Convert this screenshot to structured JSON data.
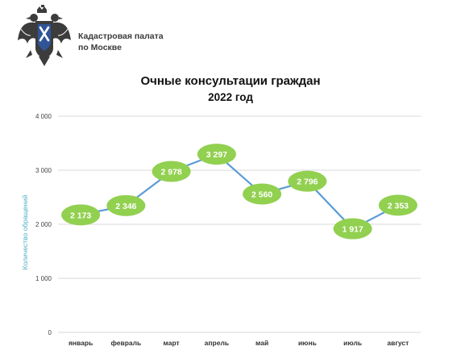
{
  "header": {
    "org_line1": "Кадастровая палата",
    "org_line2": "по Москве",
    "logo_icon": "eagle-emblem-icon"
  },
  "colors": {
    "line": "#5b9bd5",
    "marker": "#92d050",
    "marker_text": "#ffffff",
    "axis_label": "#4bacc6",
    "grid": "#d9d9d9"
  },
  "chart_data": {
    "type": "line",
    "title": "Очные консультации граждан",
    "subtitle": "2022 год",
    "xlabel": "",
    "ylabel": "Количество обращений",
    "categories": [
      "январь",
      "февраль",
      "март",
      "апрель",
      "май",
      "июнь",
      "июль",
      "август"
    ],
    "series": [
      {
        "values": [
          2173,
          2346,
          2978,
          3297,
          2560,
          2796,
          1917,
          2353
        ]
      }
    ],
    "data_labels": [
      "2 173",
      "2 346",
      "2 978",
      "3 297",
      "2 560",
      "2 796",
      "1 917",
      "2 353"
    ],
    "yticks": [
      0,
      1000,
      2000,
      3000,
      4000
    ],
    "ytick_labels": [
      "0",
      "1 000",
      "2 000",
      "3 000",
      "4 000"
    ],
    "ylim": [
      0,
      4000
    ],
    "grid": true,
    "legend": "none"
  }
}
